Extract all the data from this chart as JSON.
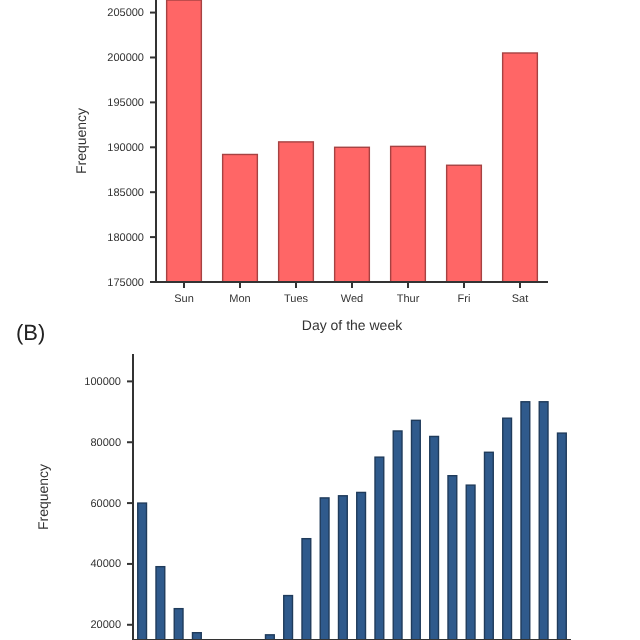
{
  "chart_data": [
    {
      "type": "bar",
      "xlabel": "Day of the week",
      "ylabel": "Frequency",
      "categories": [
        "Sun",
        "Mon",
        "Tues",
        "Wed",
        "Thur",
        "Fri",
        "Sat"
      ],
      "values": [
        206400,
        189200,
        190600,
        190000,
        190100,
        188000,
        200500
      ],
      "color": "#ff6666",
      "ylim": [
        175000,
        206400
      ],
      "yticks": [
        175000,
        180000,
        185000,
        190000,
        195000,
        200000,
        205000
      ]
    },
    {
      "type": "bar",
      "title": "(B)",
      "ylabel": "Frequency",
      "categories": [
        null,
        null,
        null,
        null,
        null,
        null,
        null,
        null,
        null,
        null,
        null,
        null,
        null,
        null,
        null,
        null,
        null,
        null,
        null,
        null,
        null,
        null,
        null,
        null
      ],
      "values": [
        60000,
        39100,
        25300,
        17400,
        null,
        null,
        null,
        16700,
        29600,
        48300,
        61700,
        62400,
        63500,
        75100,
        83700,
        87200,
        81900,
        69000,
        65900,
        76700,
        87900,
        93300,
        93300,
        83000
      ],
      "color": "#2f5a8c",
      "ylim": [
        15000,
        109000
      ],
      "yticks": [
        20000,
        40000,
        60000,
        80000,
        100000
      ],
      "tick_labels": "y"
    }
  ]
}
